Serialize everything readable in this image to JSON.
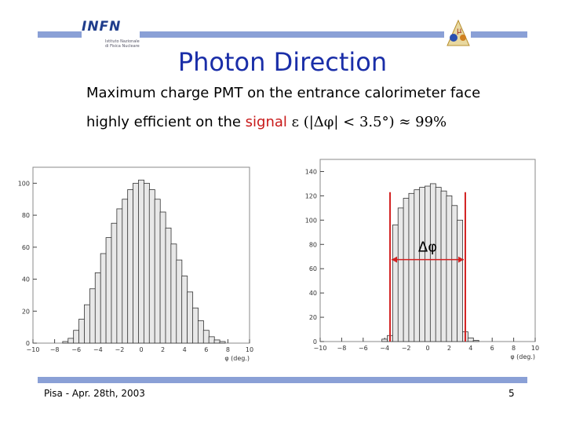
{
  "logo": {
    "text": "INFN",
    "sub": "Istituto Nazionale di Fisica Nucleare"
  },
  "title": "Photon Direction",
  "line1": "Maximum charge PMT on the entrance calorimeter face",
  "line2_prefix": "highly efficient on the ",
  "line2_signal": "signal",
  "line2_formula": "ε (|Δφ| < 3.5°) ≈ 99%",
  "footer": {
    "left": "Pisa - Apr. 28th, 2003",
    "right": "5"
  },
  "colors": {
    "accent_bar": "#8aa0d6",
    "title": "#1a2ea8",
    "signal": "#c81818",
    "marker": "#d22020"
  },
  "chart_data": [
    {
      "type": "histogram",
      "xlabel": "φ (deg.)",
      "ylabel": "",
      "xlim": [
        -10,
        10
      ],
      "ylim": [
        0,
        110
      ],
      "xticks": [
        "−10",
        "−8",
        "−6",
        "−4",
        "−2",
        "0",
        "2",
        "4",
        "6",
        "8",
        "10"
      ],
      "yticks": [
        "0",
        "20",
        "40",
        "60",
        "80",
        "100"
      ],
      "bin_centers": [
        -9.5,
        -9,
        -8.5,
        -8,
        -7.5,
        -7,
        -6.5,
        -6,
        -5.5,
        -5,
        -4.5,
        -4,
        -3.5,
        -3,
        -2.5,
        -2,
        -1.5,
        -1,
        -0.5,
        0,
        0.5,
        1,
        1.5,
        2,
        2.5,
        3,
        3.5,
        4,
        4.5,
        5,
        5.5,
        6,
        6.5,
        7,
        7.5,
        8,
        8.5,
        9,
        9.5
      ],
      "values": [
        0,
        0,
        0,
        0,
        0,
        1,
        3,
        8,
        15,
        24,
        34,
        44,
        56,
        66,
        75,
        84,
        90,
        96,
        100,
        102,
        100,
        96,
        90,
        82,
        72,
        62,
        52,
        42,
        32,
        22,
        14,
        8,
        4,
        2,
        1,
        0,
        0,
        0,
        0
      ]
    },
    {
      "type": "histogram",
      "xlabel": "φ (deg.)",
      "ylabel": "",
      "xlim": [
        -10,
        10
      ],
      "ylim": [
        0,
        150
      ],
      "xticks": [
        "−10",
        "−8",
        "−6",
        "−4",
        "−2",
        "0",
        "2",
        "4",
        "6",
        "8",
        "10"
      ],
      "yticks": [
        "0",
        "20",
        "40",
        "60",
        "80",
        "100",
        "120",
        "140"
      ],
      "bin_centers": [
        -9.5,
        -9,
        -8.5,
        -8,
        -7.5,
        -7,
        -6.5,
        -6,
        -5.5,
        -5,
        -4.5,
        -4,
        -3.5,
        -3,
        -2.5,
        -2,
        -1.5,
        -1,
        -0.5,
        0,
        0.5,
        1,
        1.5,
        2,
        2.5,
        3,
        3.5,
        4,
        4.5,
        5,
        5.5,
        6,
        6.5,
        7,
        7.5,
        8,
        8.5,
        9,
        9.5
      ],
      "values": [
        0,
        0,
        0,
        0,
        0,
        0,
        0,
        0,
        0,
        0,
        0,
        2,
        5,
        96,
        110,
        118,
        122,
        125,
        127,
        128,
        130,
        127,
        124,
        120,
        112,
        100,
        8,
        3,
        1,
        0,
        0,
        0,
        0,
        0,
        0,
        0,
        0,
        0,
        0
      ],
      "annotation": "Δφ",
      "markers_x": [
        -3.5,
        3.5
      ]
    }
  ]
}
